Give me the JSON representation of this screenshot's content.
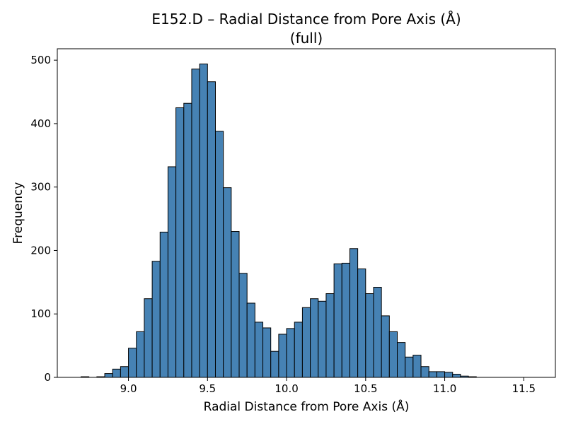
{
  "chart_data": {
    "type": "bar",
    "title": "E152.D – Radial Distance from Pore Axis (Å)",
    "subtitle": "(full)",
    "xlabel": "Radial Distance from Pore Axis (Å)",
    "ylabel": "Frequency",
    "xlim": [
      8.55,
      11.7
    ],
    "ylim": [
      0,
      518
    ],
    "xticks": [
      9.0,
      9.5,
      10.0,
      10.5,
      11.0,
      11.5
    ],
    "xtick_labels": [
      "9.0",
      "9.5",
      "10.0",
      "10.5",
      "11.0",
      "11.5"
    ],
    "yticks": [
      0,
      100,
      200,
      300,
      400,
      500
    ],
    "ytick_labels": [
      "0",
      "100",
      "200",
      "300",
      "400",
      "500"
    ],
    "bin_start": 8.7,
    "bin_width": 0.05,
    "values": [
      1,
      0,
      1,
      6,
      13,
      17,
      46,
      72,
      124,
      183,
      229,
      332,
      425,
      432,
      486,
      494,
      466,
      388,
      299,
      230,
      164,
      117,
      87,
      78,
      41,
      68,
      77,
      87,
      110,
      124,
      120,
      132,
      179,
      180,
      203,
      171,
      132,
      142,
      97,
      72,
      55,
      32,
      35,
      17,
      9,
      9,
      8,
      5,
      2,
      1
    ],
    "bar_color": "#4682b4",
    "edge_color": "#000000",
    "grid": false,
    "legend": "none"
  }
}
